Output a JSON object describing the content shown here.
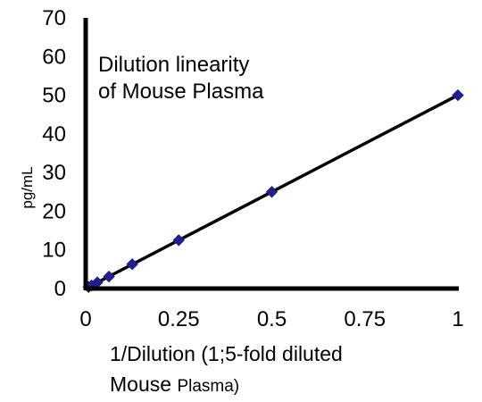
{
  "chart_data": {
    "type": "scatter",
    "title_lines": [
      "Dilution linearity",
      "of Mouse Plasma"
    ],
    "ylabel": "pg/mL",
    "xlabel_line1": "1/Dilution (1;5-fold diluted",
    "xlabel_line2_a": "Mouse ",
    "xlabel_line2_b": "Plasma)",
    "xlim": [
      0,
      1
    ],
    "ylim": [
      0,
      70
    ],
    "x_ticks": [
      0,
      0.25,
      0.5,
      0.75,
      1
    ],
    "x_tick_labels": [
      "0",
      "0.25",
      "0.5",
      "0.75",
      "1"
    ],
    "y_ticks": [
      0,
      10,
      20,
      30,
      40,
      50,
      60,
      70
    ],
    "y_tick_labels": [
      "0",
      "10",
      "20",
      "30",
      "40",
      "50",
      "60",
      "70"
    ],
    "grid": false,
    "trendline": {
      "from": [
        0,
        0
      ],
      "to": [
        1,
        50
      ]
    },
    "series": [
      {
        "marker": "diamond",
        "color": "#1f1f8f",
        "points": [
          {
            "x": 0.0078,
            "y": 0.4
          },
          {
            "x": 0.0156,
            "y": 0.8
          },
          {
            "x": 0.03125,
            "y": 1.6
          },
          {
            "x": 0.0625,
            "y": 3.1
          },
          {
            "x": 0.125,
            "y": 6.3
          },
          {
            "x": 0.25,
            "y": 12.5
          },
          {
            "x": 0.5,
            "y": 25
          },
          {
            "x": 1,
            "y": 50
          }
        ]
      }
    ]
  }
}
